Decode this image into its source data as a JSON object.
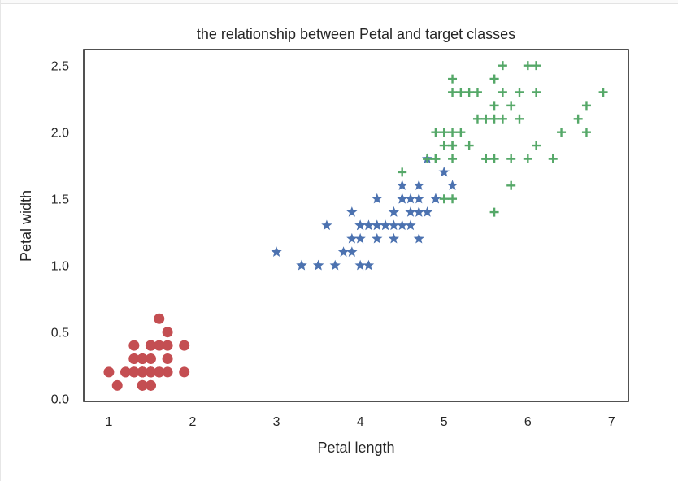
{
  "chart_data": {
    "type": "scatter",
    "title": "the relationship between Petal and target classes",
    "xlabel": "Petal length",
    "ylabel": "Petal width",
    "xlim": [
      0.7,
      7.2
    ],
    "ylim": [
      -0.02,
      2.62
    ],
    "xticks": [
      {
        "value": 1,
        "label": "1"
      },
      {
        "value": 2,
        "label": "2"
      },
      {
        "value": 3,
        "label": "3"
      },
      {
        "value": 4,
        "label": "4"
      },
      {
        "value": 5,
        "label": "5"
      },
      {
        "value": 6,
        "label": "6"
      },
      {
        "value": 7,
        "label": "7"
      }
    ],
    "yticks": [
      {
        "value": 0.0,
        "label": "0.0"
      },
      {
        "value": 0.5,
        "label": "0.5"
      },
      {
        "value": 1.0,
        "label": "1.0"
      },
      {
        "value": 1.5,
        "label": "1.5"
      },
      {
        "value": 2.0,
        "label": "2.0"
      },
      {
        "value": 2.5,
        "label": "2.5"
      }
    ],
    "grid": false,
    "series": [
      {
        "marker": "circle",
        "color": "#c44e52",
        "points": [
          [
            1.4,
            0.2
          ],
          [
            1.4,
            0.2
          ],
          [
            1.3,
            0.2
          ],
          [
            1.5,
            0.2
          ],
          [
            1.4,
            0.2
          ],
          [
            1.7,
            0.4
          ],
          [
            1.4,
            0.3
          ],
          [
            1.5,
            0.2
          ],
          [
            1.4,
            0.2
          ],
          [
            1.5,
            0.1
          ],
          [
            1.5,
            0.2
          ],
          [
            1.6,
            0.2
          ],
          [
            1.4,
            0.1
          ],
          [
            1.1,
            0.1
          ],
          [
            1.2,
            0.2
          ],
          [
            1.5,
            0.4
          ],
          [
            1.3,
            0.4
          ],
          [
            1.4,
            0.3
          ],
          [
            1.7,
            0.3
          ],
          [
            1.5,
            0.3
          ],
          [
            1.7,
            0.2
          ],
          [
            1.5,
            0.4
          ],
          [
            1.0,
            0.2
          ],
          [
            1.7,
            0.5
          ],
          [
            1.9,
            0.2
          ],
          [
            1.6,
            0.2
          ],
          [
            1.6,
            0.4
          ],
          [
            1.5,
            0.2
          ],
          [
            1.4,
            0.2
          ],
          [
            1.6,
            0.2
          ],
          [
            1.6,
            0.2
          ],
          [
            1.5,
            0.4
          ],
          [
            1.5,
            0.1
          ],
          [
            1.4,
            0.2
          ],
          [
            1.5,
            0.2
          ],
          [
            1.2,
            0.2
          ],
          [
            1.3,
            0.2
          ],
          [
            1.4,
            0.1
          ],
          [
            1.3,
            0.2
          ],
          [
            1.5,
            0.2
          ],
          [
            1.3,
            0.3
          ],
          [
            1.3,
            0.3
          ],
          [
            1.3,
            0.2
          ],
          [
            1.6,
            0.6
          ],
          [
            1.9,
            0.4
          ],
          [
            1.4,
            0.3
          ],
          [
            1.6,
            0.2
          ],
          [
            1.4,
            0.2
          ],
          [
            1.5,
            0.2
          ],
          [
            1.4,
            0.2
          ]
        ]
      },
      {
        "marker": "star",
        "color": "#4c72b0",
        "points": [
          [
            4.7,
            1.4
          ],
          [
            4.5,
            1.5
          ],
          [
            4.9,
            1.5
          ],
          [
            4.0,
            1.3
          ],
          [
            4.6,
            1.5
          ],
          [
            4.5,
            1.3
          ],
          [
            4.7,
            1.6
          ],
          [
            3.3,
            1.0
          ],
          [
            4.6,
            1.3
          ],
          [
            3.9,
            1.4
          ],
          [
            3.5,
            1.0
          ],
          [
            4.2,
            1.5
          ],
          [
            4.0,
            1.0
          ],
          [
            4.7,
            1.4
          ],
          [
            3.6,
            1.3
          ],
          [
            4.4,
            1.4
          ],
          [
            4.5,
            1.5
          ],
          [
            4.1,
            1.0
          ],
          [
            4.5,
            1.5
          ],
          [
            3.9,
            1.1
          ],
          [
            4.8,
            1.8
          ],
          [
            4.0,
            1.3
          ],
          [
            4.9,
            1.5
          ],
          [
            4.7,
            1.2
          ],
          [
            4.3,
            1.3
          ],
          [
            4.4,
            1.4
          ],
          [
            4.8,
            1.4
          ],
          [
            5.0,
            1.7
          ],
          [
            4.5,
            1.5
          ],
          [
            3.5,
            1.0
          ],
          [
            3.8,
            1.1
          ],
          [
            3.7,
            1.0
          ],
          [
            3.9,
            1.2
          ],
          [
            5.1,
            1.6
          ],
          [
            4.5,
            1.5
          ],
          [
            4.5,
            1.6
          ],
          [
            4.7,
            1.5
          ],
          [
            4.4,
            1.3
          ],
          [
            4.1,
            1.3
          ],
          [
            4.0,
            1.3
          ],
          [
            4.4,
            1.2
          ],
          [
            4.6,
            1.4
          ],
          [
            4.0,
            1.2
          ],
          [
            3.3,
            1.0
          ],
          [
            4.2,
            1.3
          ],
          [
            4.2,
            1.2
          ],
          [
            4.2,
            1.3
          ],
          [
            4.3,
            1.3
          ],
          [
            3.0,
            1.1
          ],
          [
            4.1,
            1.3
          ]
        ]
      },
      {
        "marker": "plus",
        "color": "#55a868",
        "points": [
          [
            6.0,
            2.5
          ],
          [
            5.1,
            1.9
          ],
          [
            5.9,
            2.1
          ],
          [
            5.6,
            1.8
          ],
          [
            5.8,
            2.2
          ],
          [
            6.6,
            2.1
          ],
          [
            4.5,
            1.7
          ],
          [
            6.3,
            1.8
          ],
          [
            5.8,
            1.8
          ],
          [
            6.1,
            2.5
          ],
          [
            5.1,
            2.0
          ],
          [
            5.3,
            1.9
          ],
          [
            5.5,
            2.1
          ],
          [
            5.0,
            2.0
          ],
          [
            5.1,
            2.4
          ],
          [
            5.3,
            2.3
          ],
          [
            5.5,
            1.8
          ],
          [
            6.7,
            2.2
          ],
          [
            6.9,
            2.3
          ],
          [
            5.0,
            1.5
          ],
          [
            5.7,
            2.3
          ],
          [
            4.9,
            2.0
          ],
          [
            6.7,
            2.0
          ],
          [
            4.9,
            1.8
          ],
          [
            5.7,
            2.1
          ],
          [
            6.0,
            1.8
          ],
          [
            4.8,
            1.8
          ],
          [
            4.9,
            1.8
          ],
          [
            5.6,
            2.1
          ],
          [
            5.8,
            1.6
          ],
          [
            6.1,
            1.9
          ],
          [
            6.4,
            2.0
          ],
          [
            5.6,
            2.2
          ],
          [
            5.1,
            1.5
          ],
          [
            5.6,
            1.4
          ],
          [
            6.1,
            2.3
          ],
          [
            5.6,
            2.4
          ],
          [
            5.5,
            1.8
          ],
          [
            4.8,
            1.8
          ],
          [
            5.4,
            2.1
          ],
          [
            5.6,
            2.4
          ],
          [
            5.1,
            2.3
          ],
          [
            5.1,
            1.9
          ],
          [
            5.9,
            2.3
          ],
          [
            5.7,
            2.5
          ],
          [
            5.2,
            2.3
          ],
          [
            5.0,
            1.9
          ],
          [
            5.2,
            2.0
          ],
          [
            5.4,
            2.3
          ],
          [
            5.1,
            1.8
          ]
        ]
      }
    ]
  }
}
